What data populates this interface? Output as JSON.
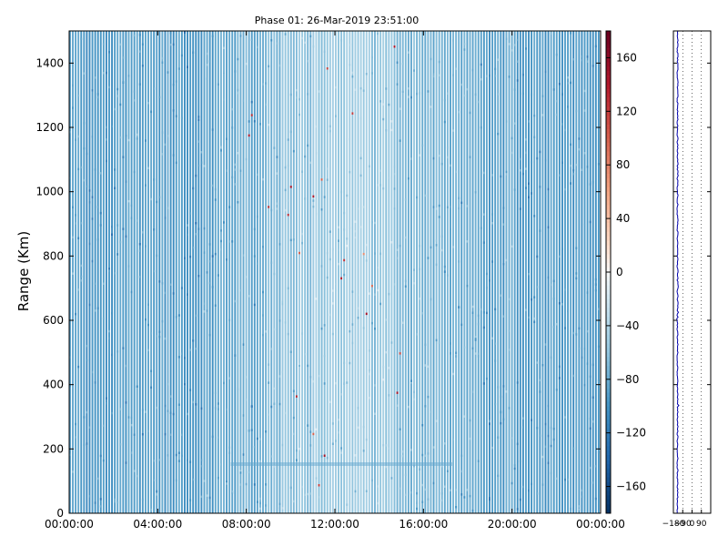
{
  "chart_data": [
    {
      "type": "heatmap",
      "title": "Phase 01: 26-Mar-2019 23:51:00",
      "xlabel": "",
      "ylabel": "Range (Km)",
      "x_ticks": [
        "00:00:00",
        "04:00:00",
        "08:00:00",
        "12:00:00",
        "16:00:00",
        "20:00:00",
        "00:00:00"
      ],
      "x_range_hours": [
        0,
        24
      ],
      "y_ticks": [
        0,
        200,
        400,
        600,
        800,
        1000,
        1200,
        1400
      ],
      "ylim": [
        0,
        1500
      ],
      "colorbar": {
        "colormap": "RdBu_r",
        "range": [
          -180,
          180
        ],
        "ticks": [
          -160,
          -120,
          -80,
          -40,
          0,
          40,
          80,
          120,
          160
        ],
        "tick_labels": [
          "−160",
          "−120",
          "−80",
          "−40",
          "0",
          "40",
          "80",
          "120",
          "160"
        ]
      },
      "description_values": {
        "dominant_value_range": [
          -120,
          -40
        ],
        "typical_value": -70
      }
    },
    {
      "type": "line",
      "x_ticks": [
        -180,
        -90,
        0,
        90
      ],
      "x_tick_labels": [
        "−180",
        "−90",
        "0",
        "90"
      ],
      "xlim": [
        -180,
        180
      ],
      "ylim": [
        0,
        1500
      ],
      "grid": "vertical dotted",
      "series_color": "#0000aa",
      "approx_value": -140
    }
  ],
  "colors": {
    "deep_blue": "#053061",
    "mid_blue": "#4393c3",
    "light_blue": "#92c5de",
    "white": "#f7f7f7",
    "light_red": "#f4a582",
    "deep_red": "#67001f"
  }
}
